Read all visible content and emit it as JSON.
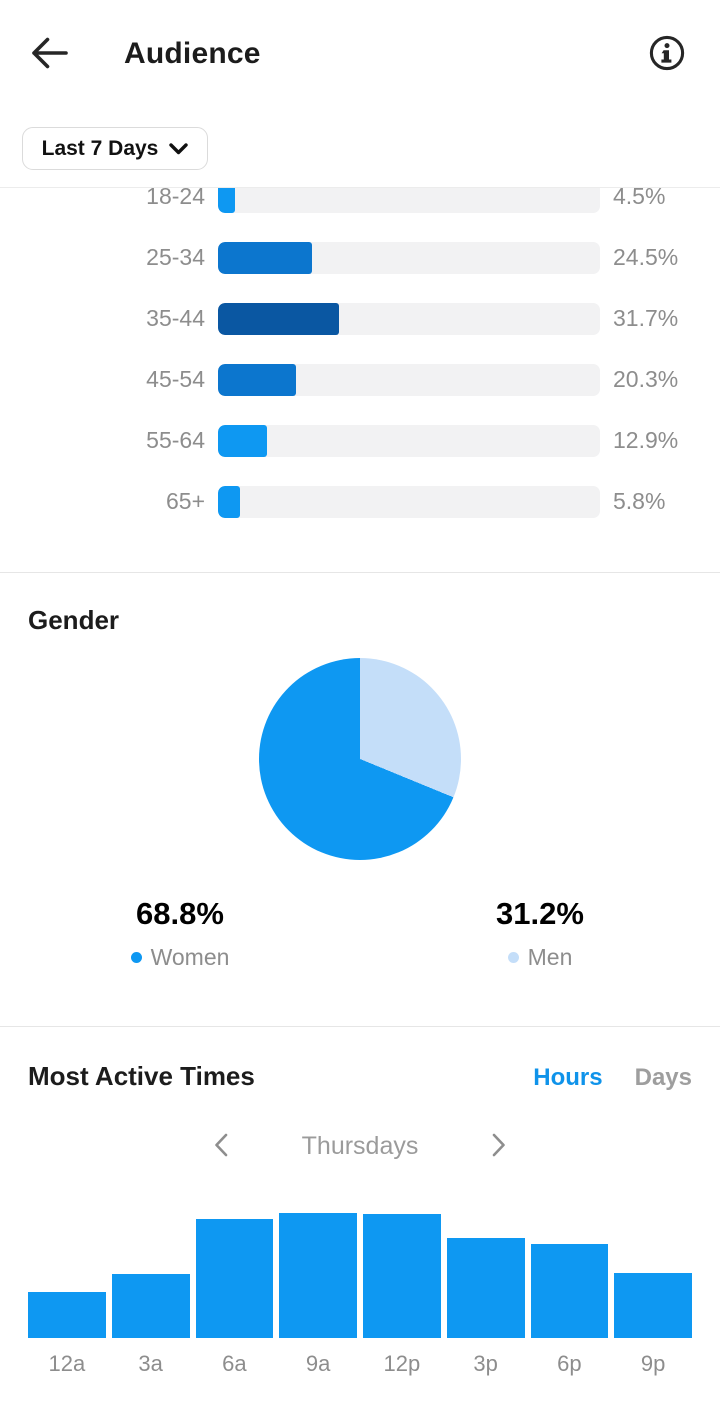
{
  "header": {
    "title": "Audience"
  },
  "filter": {
    "label": "Last 7 Days"
  },
  "colors": {
    "accent_blue": "#0e98f2",
    "medium_blue": "#0c76ce",
    "dark_blue": "#0a57a2",
    "light_blue": "#c4def9",
    "bar_track": "#f2f2f3",
    "muted_text": "#8d8d8d",
    "tab_active": "#0f93ea",
    "tab_inactive": "#9e9e9e"
  },
  "age_chart": {
    "rows": [
      {
        "label": "18-24",
        "value": 4.5,
        "display": "4.5%",
        "color": "#0e98f2"
      },
      {
        "label": "25-34",
        "value": 24.5,
        "display": "24.5%",
        "color": "#0c76ce"
      },
      {
        "label": "35-44",
        "value": 31.7,
        "display": "31.7%",
        "color": "#0a57a2"
      },
      {
        "label": "45-54",
        "value": 20.3,
        "display": "20.3%",
        "color": "#0c76ce"
      },
      {
        "label": "55-64",
        "value": 12.9,
        "display": "12.9%",
        "color": "#0e98f2"
      },
      {
        "label": "65+",
        "value": 5.8,
        "display": "5.8%",
        "color": "#0e98f2"
      }
    ]
  },
  "gender": {
    "title": "Gender",
    "segments": [
      {
        "label": "Women",
        "value": 68.8,
        "display": "68.8%",
        "color": "#0e98f2"
      },
      {
        "label": "Men",
        "value": 31.2,
        "display": "31.2%",
        "color": "#c4def9"
      }
    ]
  },
  "active_times": {
    "title": "Most Active Times",
    "tabs": [
      {
        "label": "Hours",
        "active": true
      },
      {
        "label": "Days",
        "active": false
      }
    ],
    "day": "Thursdays",
    "hours": {
      "categories": [
        "12a",
        "3a",
        "6a",
        "9a",
        "12p",
        "3p",
        "6p",
        "9p"
      ],
      "values": [
        0.37,
        0.51,
        0.95,
        1.0,
        0.99,
        0.8,
        0.75,
        0.52
      ]
    }
  },
  "chart_data": [
    {
      "type": "bar",
      "orientation": "horizontal",
      "title": "Audience age ranges (Last 7 Days)",
      "categories": [
        "18-24",
        "25-34",
        "35-44",
        "45-54",
        "55-64",
        "65+"
      ],
      "values": [
        4.5,
        24.5,
        31.7,
        20.3,
        12.9,
        5.8
      ],
      "unit": "%",
      "xlim": [
        0,
        100
      ],
      "highlight_category": "35-44",
      "note": "top row (18-24) partially scrolled out of view"
    },
    {
      "type": "pie",
      "title": "Gender",
      "categories": [
        "Women",
        "Men"
      ],
      "values": [
        68.8,
        31.2
      ],
      "unit": "%",
      "colors": [
        "#0e98f2",
        "#c4def9"
      ],
      "start_angle": "12 o'clock, Men slice clockwise first",
      "legend_position": "below"
    },
    {
      "type": "bar",
      "title": "Most Active Times — Thursdays (Hours)",
      "categories": [
        "12a",
        "3a",
        "6a",
        "9a",
        "12p",
        "3p",
        "6p",
        "9p"
      ],
      "values": [
        0.37,
        0.51,
        0.95,
        1.0,
        0.99,
        0.8,
        0.75,
        0.52
      ],
      "ylabel": "relative activity (no axis shown, estimated from bar heights)",
      "grid": false,
      "legend_position": "none"
    }
  ]
}
